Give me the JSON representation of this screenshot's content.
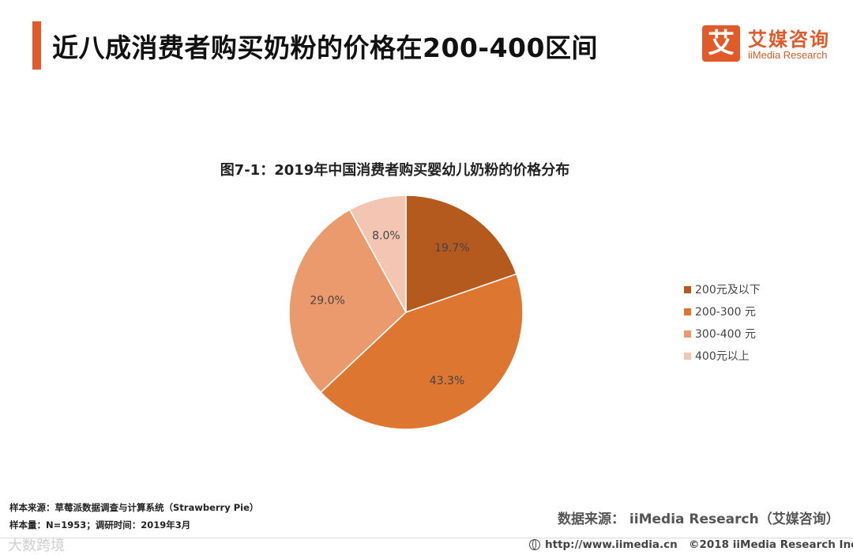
{
  "header": {
    "title": "近八成消费者购买奶粉的价格在200-400区间"
  },
  "logo": {
    "mark": "艾",
    "name_cn": "艾媒咨询",
    "name_en": "iiMedia Research"
  },
  "chart_data": {
    "type": "pie",
    "title": "图7-1：2019年中国消费者购买婴幼儿奶粉的价格分布",
    "categories": [
      "200元及以下",
      "200-300 元",
      "300-400 元",
      "400元以上"
    ],
    "values": [
      19.7,
      43.3,
      29.0,
      8.0
    ],
    "value_labels": [
      "19.7%",
      "43.3%",
      "29.0%",
      "8.0%"
    ],
    "colors": [
      "#b45a1e",
      "#dc7630",
      "#eb9a6e",
      "#f3c6b4"
    ],
    "legend_position": "right"
  },
  "notes": {
    "sample_source": "样本来源：草莓派数据调查与计算系统（Strawberry   Pie）",
    "sample_size": "样本量：N=1953；调研时间：2019年3月"
  },
  "source": "数据来源：  iiMedia Research（艾媒咨询）",
  "footer": {
    "url": "http://www.iimedia.cn",
    "copyright": "©2018  iiMedia Research  Inc",
    "watermark": "大数跨境"
  }
}
